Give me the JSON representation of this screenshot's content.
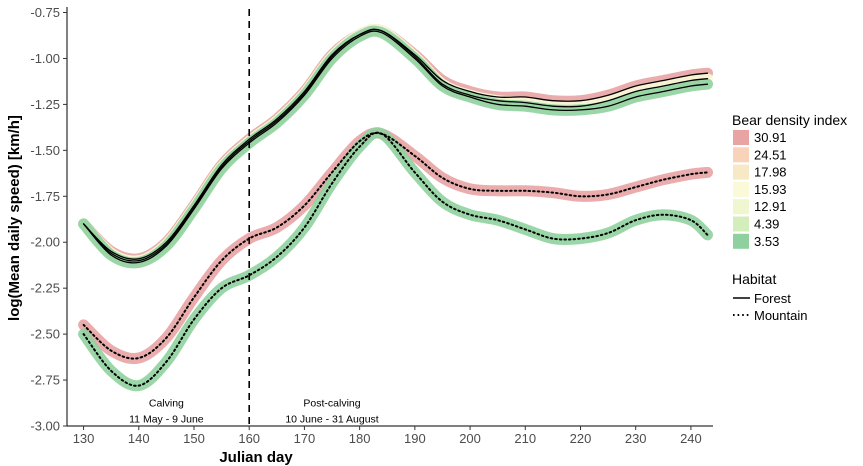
{
  "chart_data": {
    "type": "line",
    "xlabel": "Julian day",
    "ylabel": "log(Mean daily speed) [km/h]",
    "xlim": [
      127,
      244
    ],
    "ylim": [
      -3.0,
      -0.72
    ],
    "x_ticks": [
      130,
      140,
      150,
      160,
      170,
      180,
      190,
      200,
      210,
      220,
      230,
      240
    ],
    "y_ticks": [
      -3.0,
      -2.75,
      -2.5,
      -2.25,
      -2.0,
      -1.75,
      -1.5,
      -1.25,
      -1.0,
      -0.75
    ],
    "y_tick_labels": [
      "-3.00",
      "-2.75",
      "-2.50",
      "-2.25",
      "-2.00",
      "-1.75",
      "-1.50",
      "-1.25",
      "-1.00",
      "-0.75"
    ],
    "grid": false,
    "vline": {
      "x": 160,
      "style": "dashed",
      "color": "#000000"
    },
    "annotations": [
      {
        "lines": [
          "Calving",
          "11 May - 9 June"
        ],
        "x": 145,
        "y": -2.895
      },
      {
        "lines": [
          "Post-calving",
          "10 June - 31 August"
        ],
        "x": 175,
        "y": -2.895
      }
    ],
    "legend": {
      "position": "right",
      "density_title": "Bear density index",
      "density_entries": [
        {
          "label": "30.91",
          "color": "#e8a3a3"
        },
        {
          "label": "24.51",
          "color": "#f8d3b9"
        },
        {
          "label": "17.98",
          "color": "#f7e9c5"
        },
        {
          "label": "15.93",
          "color": "#fafad8"
        },
        {
          "label": "12.91",
          "color": "#f0f6cf"
        },
        {
          "label": "4.39",
          "color": "#d4eebb"
        },
        {
          "label": "3.53",
          "color": "#8fd19e"
        }
      ],
      "habitat_title": "Habitat",
      "habitat_entries": [
        {
          "label": "Forest",
          "linestyle": "solid"
        },
        {
          "label": "Mountain",
          "linestyle": "dotted"
        }
      ]
    },
    "x": [
      130,
      135,
      140,
      145,
      150,
      155,
      160,
      165,
      170,
      175,
      180,
      184,
      190,
      195,
      200,
      205,
      210,
      215,
      220,
      225,
      230,
      235,
      240,
      243
    ],
    "series": [
      {
        "habitat": "Forest",
        "density": "30.91",
        "values": [
          -1.9,
          -2.05,
          -2.09,
          -2.0,
          -1.8,
          -1.58,
          -1.44,
          -1.33,
          -1.18,
          -0.98,
          -0.87,
          -0.85,
          -0.98,
          -1.12,
          -1.18,
          -1.21,
          -1.21,
          -1.23,
          -1.23,
          -1.2,
          -1.15,
          -1.12,
          -1.09,
          -1.08
        ]
      },
      {
        "habitat": "Forest",
        "density": "15.93",
        "values": [
          -1.9,
          -2.06,
          -2.1,
          -2.01,
          -1.81,
          -1.59,
          -1.45,
          -1.34,
          -1.19,
          -0.99,
          -0.87,
          -0.85,
          -0.99,
          -1.14,
          -1.2,
          -1.23,
          -1.24,
          -1.26,
          -1.26,
          -1.23,
          -1.18,
          -1.15,
          -1.12,
          -1.11
        ]
      },
      {
        "habitat": "Forest",
        "density": "3.53",
        "values": [
          -1.9,
          -2.07,
          -2.11,
          -2.02,
          -1.82,
          -1.6,
          -1.46,
          -1.35,
          -1.2,
          -1.0,
          -0.88,
          -0.86,
          -1.0,
          -1.15,
          -1.21,
          -1.25,
          -1.26,
          -1.28,
          -1.28,
          -1.26,
          -1.21,
          -1.18,
          -1.15,
          -1.14
        ]
      },
      {
        "habitat": "Mountain",
        "density": "30.91",
        "values": [
          -2.45,
          -2.59,
          -2.63,
          -2.52,
          -2.3,
          -2.1,
          -1.98,
          -1.92,
          -1.8,
          -1.62,
          -1.45,
          -1.41,
          -1.53,
          -1.65,
          -1.71,
          -1.72,
          -1.72,
          -1.73,
          -1.75,
          -1.74,
          -1.7,
          -1.66,
          -1.63,
          -1.62
        ]
      },
      {
        "habitat": "Mountain",
        "density": "3.53",
        "values": [
          -2.5,
          -2.7,
          -2.78,
          -2.65,
          -2.42,
          -2.25,
          -2.18,
          -2.08,
          -1.92,
          -1.68,
          -1.48,
          -1.41,
          -1.62,
          -1.78,
          -1.85,
          -1.88,
          -1.93,
          -1.98,
          -1.98,
          -1.95,
          -1.88,
          -1.85,
          -1.88,
          -1.96
        ]
      }
    ]
  }
}
